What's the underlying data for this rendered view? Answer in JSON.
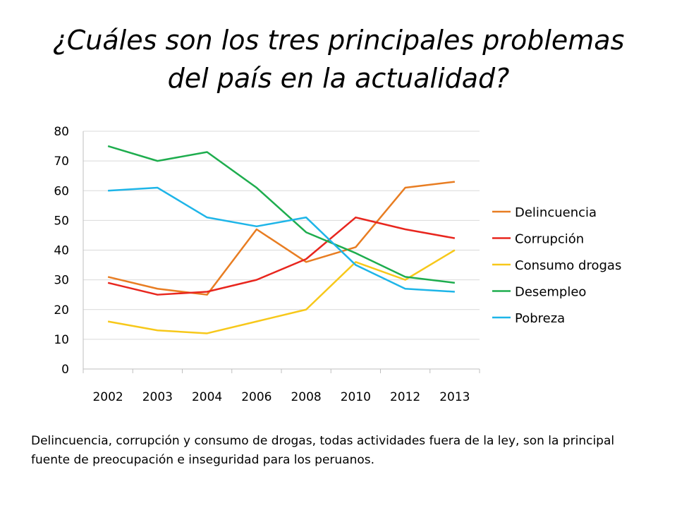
{
  "title_line1": "¿Cuáles son los tres principales problemas",
  "title_line2": "del país en la actualidad?",
  "caption": "Delincuencia, corrupción y consumo de drogas, todas actividades fuera de la ley, son la principal fuente de preocupación e inseguridad para los peruanos.",
  "chart_data": {
    "type": "line",
    "categories": [
      "2002",
      "2003",
      "2004",
      "2006",
      "2008",
      "2010",
      "2012",
      "2013"
    ],
    "ylim": [
      0,
      80
    ],
    "yticks": [
      0,
      10,
      20,
      30,
      40,
      50,
      60,
      70,
      80
    ],
    "grid": "horizontal",
    "legend": "right",
    "series": [
      {
        "name": "Delincuencia",
        "color": "#E87D22",
        "values": [
          31,
          27,
          25,
          47,
          36,
          41,
          61,
          63
        ]
      },
      {
        "name": "Corrupción",
        "color": "#E8261E",
        "values": [
          29,
          25,
          26,
          30,
          37,
          51,
          47,
          44
        ]
      },
      {
        "name": "Consumo drogas",
        "color": "#F7C81A",
        "values": [
          16,
          13,
          12,
          16,
          20,
          36,
          30,
          40
        ]
      },
      {
        "name": "Desempleo",
        "color": "#1EAD4E",
        "values": [
          75,
          70,
          73,
          61,
          46,
          39,
          31,
          29
        ]
      },
      {
        "name": "Pobreza",
        "color": "#1EB5E8",
        "values": [
          60,
          61,
          51,
          48,
          51,
          35,
          27,
          26
        ]
      }
    ]
  }
}
